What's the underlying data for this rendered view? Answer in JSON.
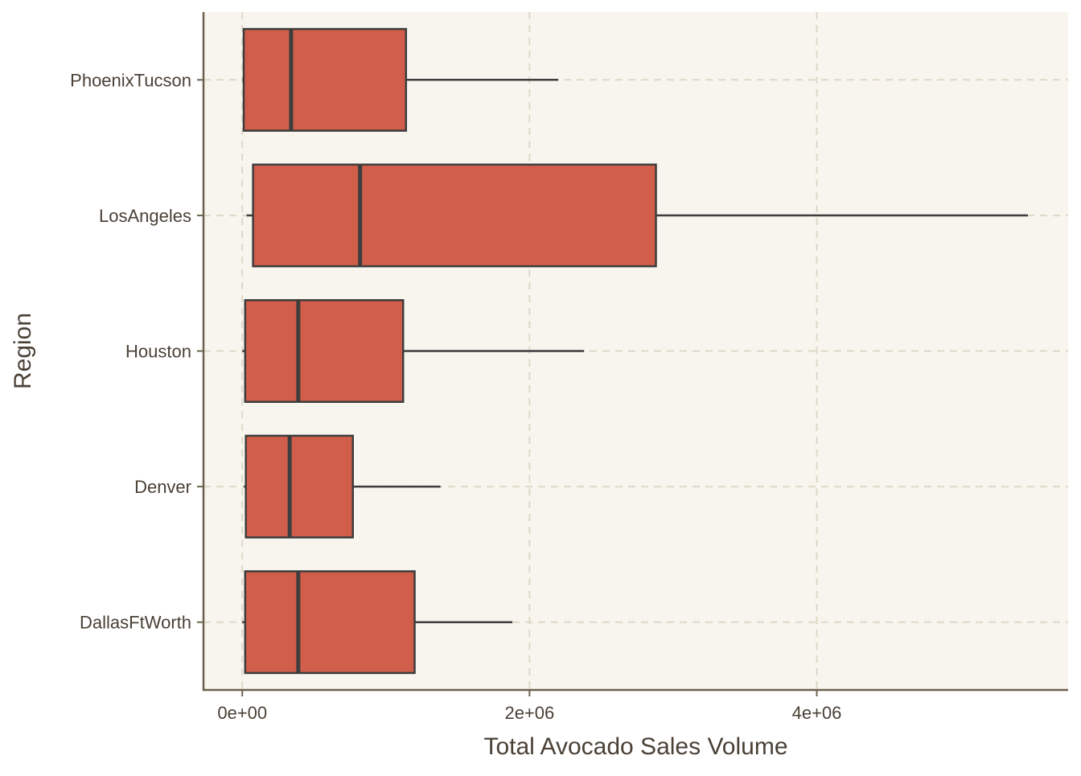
{
  "chart_data": {
    "type": "boxplot",
    "orientation": "horizontal",
    "title": "",
    "xlabel": "Total Avocado Sales Volume",
    "ylabel": "Region",
    "xlim": [
      -270000,
      5750000
    ],
    "x_ticks": [
      0,
      2000000,
      4000000
    ],
    "x_tick_labels": [
      "0e+00",
      "2e+06",
      "4e+06"
    ],
    "categories": [
      "PhoenixTucson",
      "LosAngeles",
      "Houston",
      "Denver",
      "DallasFtWorth"
    ],
    "boxes": [
      {
        "category": "PhoenixTucson",
        "whisker_low": 0,
        "q1": 10000,
        "median": 340000,
        "q3": 1140000,
        "whisker_high": 2200000
      },
      {
        "category": "LosAngeles",
        "whisker_low": 30000,
        "q1": 75000,
        "median": 820000,
        "q3": 2880000,
        "whisker_high": 5470000
      },
      {
        "category": "Houston",
        "whisker_low": 0,
        "q1": 20000,
        "median": 390000,
        "q3": 1120000,
        "whisker_high": 2380000
      },
      {
        "category": "Denver",
        "whisker_low": 10000,
        "q1": 25000,
        "median": 330000,
        "q3": 770000,
        "whisker_high": 1380000
      },
      {
        "category": "DallasFtWorth",
        "whisker_low": 0,
        "q1": 20000,
        "median": 390000,
        "q3": 1200000,
        "whisker_high": 1880000
      }
    ],
    "grid": true,
    "legend": "none",
    "colors": {
      "panel_background": "#f8f5ee",
      "box_fill": "#d15e4b",
      "box_stroke": "#3d3d3d",
      "grid": "#ddd9c6",
      "axis_line": "#6e604e",
      "text": "#4a4036"
    }
  }
}
